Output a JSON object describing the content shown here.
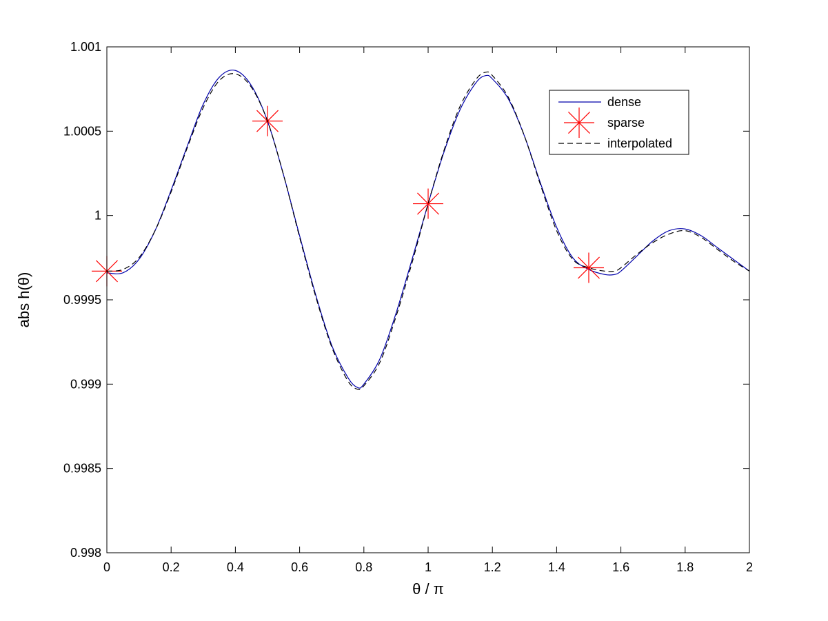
{
  "chart_data": {
    "type": "line",
    "xlabel": "θ / π",
    "ylabel": "abs h(θ)",
    "xlim": [
      0,
      2
    ],
    "ylim": [
      0.998,
      1.001
    ],
    "xticks": [
      0,
      0.2,
      0.4,
      0.6,
      0.8,
      1,
      1.2,
      1.4,
      1.6,
      1.8,
      2
    ],
    "xtick_labels": [
      "0",
      "0.2",
      "0.4",
      "0.6",
      "0.8",
      "1",
      "1.2",
      "1.4",
      "1.6",
      "1.8",
      "2"
    ],
    "yticks": [
      0.998,
      0.9985,
      0.999,
      0.9995,
      1,
      1.0005,
      1.001
    ],
    "ytick_labels": [
      "0.998",
      "0.9985",
      "0.999",
      "0.9995",
      "1",
      "1.0005",
      "1.001"
    ],
    "grid": false,
    "legend_position": "top-right",
    "series": [
      {
        "name": "dense",
        "style": "solid",
        "color": "#0000aa",
        "x": [
          0,
          0.05,
          0.1,
          0.15,
          0.2,
          0.25,
          0.3,
          0.35,
          0.4,
          0.45,
          0.5,
          0.55,
          0.6,
          0.65,
          0.7,
          0.75,
          0.78,
          0.8,
          0.85,
          0.9,
          0.95,
          1.0,
          1.05,
          1.1,
          1.15,
          1.18,
          1.2,
          1.25,
          1.3,
          1.35,
          1.4,
          1.45,
          1.5,
          1.55,
          1.58,
          1.6,
          1.65,
          1.7,
          1.75,
          1.8,
          1.85,
          1.9,
          1.95,
          2.0
        ],
        "y": [
          0.99966,
          0.99966,
          0.99974,
          0.99991,
          1.00015,
          1.00041,
          1.00066,
          1.00082,
          1.00086,
          1.00077,
          1.00056,
          1.00024,
          0.99988,
          0.99953,
          0.99923,
          0.99904,
          0.99898,
          0.999,
          0.99915,
          0.99942,
          0.99974,
          1.00007,
          1.00038,
          1.00063,
          1.00079,
          1.00083,
          1.00081,
          1.00069,
          1.00047,
          1.00019,
          0.99993,
          0.99975,
          0.99968,
          0.99965,
          0.99965,
          0.99967,
          0.99976,
          0.99985,
          0.99991,
          0.99992,
          0.99988,
          0.99981,
          0.99974,
          0.99967
        ]
      },
      {
        "name": "sparse",
        "style": "marker",
        "marker": "asterisk",
        "color": "#ff0000",
        "x": [
          0,
          0.5,
          1.0,
          1.5
        ],
        "y": [
          0.99967,
          1.00056,
          1.00007,
          0.99969
        ]
      },
      {
        "name": "interpolated",
        "style": "dashed",
        "color": "#000000",
        "x": [
          0,
          0.05,
          0.1,
          0.15,
          0.2,
          0.25,
          0.3,
          0.35,
          0.4,
          0.45,
          0.5,
          0.55,
          0.6,
          0.65,
          0.7,
          0.75,
          0.78,
          0.8,
          0.85,
          0.9,
          0.95,
          1.0,
          1.05,
          1.1,
          1.15,
          1.18,
          1.2,
          1.25,
          1.3,
          1.35,
          1.4,
          1.45,
          1.5,
          1.55,
          1.58,
          1.6,
          1.65,
          1.7,
          1.75,
          1.8,
          1.85,
          1.9,
          1.95,
          2.0
        ],
        "y": [
          0.99967,
          0.99968,
          0.99975,
          0.99991,
          1.00014,
          1.0004,
          1.00064,
          1.0008,
          1.00084,
          1.00076,
          1.00056,
          1.00024,
          0.99987,
          0.99952,
          0.99922,
          0.99902,
          0.99897,
          0.99899,
          0.99913,
          0.9994,
          0.99972,
          1.00007,
          1.00039,
          1.00065,
          1.00081,
          1.00085,
          1.00083,
          1.0007,
          1.00047,
          1.00018,
          0.99991,
          0.99974,
          0.99969,
          0.99967,
          0.99967,
          0.99969,
          0.99977,
          0.99984,
          0.99989,
          0.99991,
          0.99987,
          0.9998,
          0.99973,
          0.99967
        ]
      }
    ]
  }
}
